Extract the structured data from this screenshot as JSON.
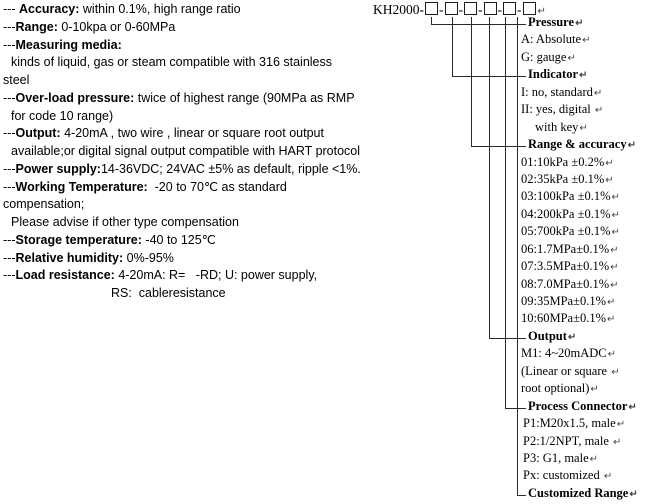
{
  "document": {
    "specs": {
      "lines": [
        {
          "indent": 0,
          "seg": [
            {
              "b": false,
              "t": "--- "
            },
            {
              "b": true,
              "t": "Accuracy:"
            },
            {
              "b": false,
              "t": " within 0.1%, high range ratio"
            }
          ]
        },
        {
          "indent": 0,
          "seg": [
            {
              "b": false,
              "t": "---"
            },
            {
              "b": true,
              "t": "Range:"
            },
            {
              "b": false,
              "t": " 0-10kpa or 0-60MPa"
            }
          ]
        },
        {
          "indent": 0,
          "seg": [
            {
              "b": false,
              "t": "---"
            },
            {
              "b": true,
              "t": "Measuring media:"
            }
          ]
        },
        {
          "indent": 8,
          "seg": [
            {
              "b": false,
              "t": "kinds of liquid, gas or steam compatible with 316 stainless"
            }
          ]
        },
        {
          "indent": 0,
          "seg": [
            {
              "b": false,
              "t": "steel"
            }
          ]
        },
        {
          "indent": 0,
          "seg": [
            {
              "b": false,
              "t": "---"
            },
            {
              "b": true,
              "t": "Over-load pressure:"
            },
            {
              "b": false,
              "t": " twice of highest range (90MPa as RMP"
            }
          ]
        },
        {
          "indent": 8,
          "seg": [
            {
              "b": false,
              "t": "for code 10 range)"
            }
          ]
        },
        {
          "indent": 0,
          "seg": [
            {
              "b": false,
              "t": "---"
            },
            {
              "b": true,
              "t": "Output:"
            },
            {
              "b": false,
              "t": " 4-20mA , two wire , linear or square root output"
            }
          ]
        },
        {
          "indent": 8,
          "seg": [
            {
              "b": false,
              "t": "available;or digital signal output compatible with HART protocol"
            }
          ]
        },
        {
          "indent": 0,
          "seg": [
            {
              "b": false,
              "t": "---"
            },
            {
              "b": true,
              "t": "Power supply:"
            },
            {
              "b": false,
              "t": "14-36VDC; 24VAC ±5% as default, ripple <1%."
            }
          ]
        },
        {
          "indent": 0,
          "seg": [
            {
              "b": false,
              "t": "---"
            },
            {
              "b": true,
              "t": "Working Temperature:"
            },
            {
              "b": false,
              "t": "  -20 to 70℃ as standard"
            }
          ]
        },
        {
          "indent": 0,
          "seg": [
            {
              "b": false,
              "t": "compensation;"
            }
          ]
        },
        {
          "indent": 8,
          "seg": [
            {
              "b": false,
              "t": "Please advise if other type compensation"
            }
          ]
        },
        {
          "indent": 0,
          "seg": [
            {
              "b": false,
              "t": "---"
            },
            {
              "b": true,
              "t": "Storage temperature:"
            },
            {
              "b": false,
              "t": " -40 to 125℃"
            }
          ]
        },
        {
          "indent": 0,
          "seg": [
            {
              "b": false,
              "t": "---"
            },
            {
              "b": true,
              "t": "Relative humidity:"
            },
            {
              "b": false,
              "t": " 0%-95%"
            }
          ]
        },
        {
          "indent": 0,
          "seg": [
            {
              "b": false,
              "t": "---"
            },
            {
              "b": true,
              "t": "Load resistance:"
            },
            {
              "b": false,
              "t": " 4-20mA: R=   -RD; U: power supply,"
            }
          ]
        },
        {
          "indent": 108,
          "seg": [
            {
              "b": false,
              "t": "RS:  cableresistance"
            }
          ]
        }
      ]
    },
    "ordering": {
      "prefix": "KH2000-",
      "box_count": 6,
      "separator": "-",
      "paragraph_mark": "↵",
      "labels": [
        {
          "b": true,
          "indent": 0,
          "t": "Pressure"
        },
        {
          "b": false,
          "indent": 0,
          "t": "A: Absolute"
        },
        {
          "b": false,
          "indent": 0,
          "t": "G: gauge"
        },
        {
          "b": true,
          "indent": 0,
          "t": "Indicator"
        },
        {
          "b": false,
          "indent": 0,
          "t": "I: no, standard"
        },
        {
          "b": false,
          "indent": 0,
          "t": "II: yes, digital "
        },
        {
          "b": false,
          "indent": 14,
          "t": "with key"
        },
        {
          "b": true,
          "indent": 0,
          "t": "Range & accuracy"
        },
        {
          "b": false,
          "indent": 0,
          "t": "01:10kPa ±0.2%"
        },
        {
          "b": false,
          "indent": 0,
          "t": "02:35kPa ±0.1%"
        },
        {
          "b": false,
          "indent": 0,
          "t": "03:100kPa ±0.1%"
        },
        {
          "b": false,
          "indent": 0,
          "t": "04:200kPa ±0.1%"
        },
        {
          "b": false,
          "indent": 0,
          "t": "05:700kPa ±0.1%"
        },
        {
          "b": false,
          "indent": 0,
          "t": "06:1.7MPa±0.1%"
        },
        {
          "b": false,
          "indent": 0,
          "t": "07:3.5MPa±0.1%"
        },
        {
          "b": false,
          "indent": 0,
          "t": "08:7.0MPa±0.1%"
        },
        {
          "b": false,
          "indent": 0,
          "t": "09:35MPa±0.1%"
        },
        {
          "b": false,
          "indent": 0,
          "t": "10:60MPa±0.1%"
        },
        {
          "b": true,
          "indent": 0,
          "t": "Output"
        },
        {
          "b": false,
          "indent": 0,
          "t": "M1: 4~20mADC"
        },
        {
          "b": false,
          "indent": 0,
          "t": "(Linear or square "
        },
        {
          "b": false,
          "indent": 0,
          "t": "root optional)"
        },
        {
          "b": true,
          "indent": 0,
          "t": "Process Connector"
        },
        {
          "b": false,
          "indent": 2,
          "t": "P1:M20x1.5, male"
        },
        {
          "b": false,
          "indent": 2,
          "t": "P2:1/2NPT, male "
        },
        {
          "b": false,
          "indent": 2,
          "t": "P3: G1, male"
        },
        {
          "b": false,
          "indent": 2,
          "t": "Px: customized "
        },
        {
          "b": true,
          "indent": 0,
          "t": "Customized Range"
        }
      ]
    },
    "colors": {
      "text": "#000000",
      "line": "#2a2a2a",
      "background": "#ffffff"
    }
  }
}
